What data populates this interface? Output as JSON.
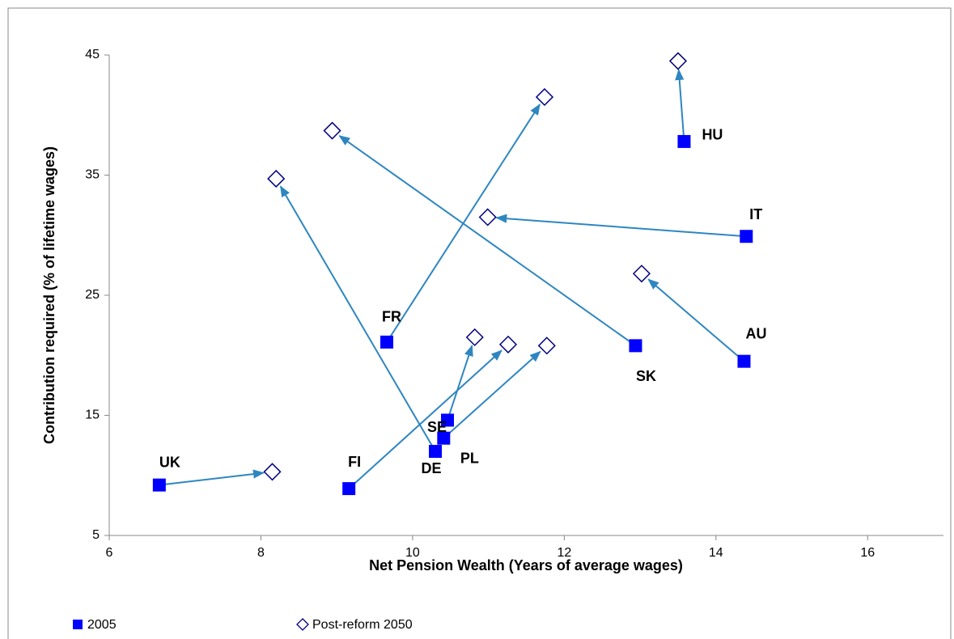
{
  "chart_data": {
    "type": "scatter",
    "xlabel": "Net Pension Wealth (Years of average wages)",
    "ylabel": "Contribution required  (% of lifetime wages)",
    "labels": [
      "UK",
      "FI",
      "FR",
      "SE",
      "PL",
      "DE",
      "SK",
      "AU",
      "IT",
      "HU"
    ],
    "series": [
      {
        "name": "2005",
        "color": "#0000ff",
        "marker": "square",
        "x": [
          6.66,
          9.16,
          9.66,
          10.46,
          10.41,
          10.3,
          12.94,
          14.37,
          14.4,
          13.58
        ],
        "values": [
          9.2,
          8.9,
          21.1,
          14.6,
          13.1,
          12.0,
          20.8,
          19.5,
          29.9,
          37.8
        ]
      },
      {
        "name": "Post-reform 2050",
        "color": "#000080",
        "marker": "diamond",
        "x": [
          8.15,
          11.26,
          11.74,
          10.82,
          11.77,
          8.2,
          8.94,
          13.02,
          10.99,
          13.5
        ],
        "values": [
          10.3,
          20.9,
          41.5,
          21.5,
          20.8,
          34.7,
          38.7,
          26.8,
          31.5,
          44.5
        ]
      }
    ],
    "arrow_color": "#2e86c1",
    "xlim": [
      6,
      17
    ],
    "xticks": [
      6,
      8,
      10,
      12,
      14,
      16
    ],
    "ylim": [
      5,
      45
    ],
    "yticks": [
      5,
      15,
      25,
      35,
      45
    ],
    "grid": false
  }
}
